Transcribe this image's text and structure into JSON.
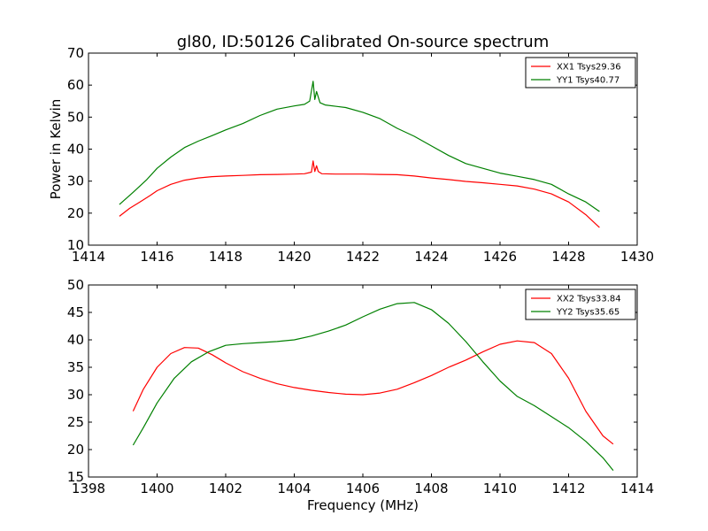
{
  "figure": {
    "title": "gl80, ID:50126 Calibrated On-source spectrum",
    "background": "#ffffff"
  },
  "chart_data": [
    {
      "type": "line",
      "title": "gl80, ID:50126 Calibrated On-source spectrum",
      "xlabel": "",
      "ylabel": "Power in Kelvin",
      "xlim": [
        1414,
        1430
      ],
      "ylim": [
        10,
        70
      ],
      "xticks": [
        1414,
        1416,
        1418,
        1420,
        1422,
        1424,
        1426,
        1428,
        1430
      ],
      "yticks": [
        10,
        20,
        30,
        40,
        50,
        60,
        70
      ],
      "grid": false,
      "legend_position": "top-right",
      "series": [
        {
          "name": "XX1 Tsys29.36",
          "color": "#ff0000",
          "points": [
            [
              1414.9,
              19.0
            ],
            [
              1415.2,
              21.5
            ],
            [
              1415.5,
              23.5
            ],
            [
              1415.8,
              25.5
            ],
            [
              1416.0,
              27.0
            ],
            [
              1416.4,
              29.0
            ],
            [
              1416.8,
              30.3
            ],
            [
              1417.2,
              31.0
            ],
            [
              1417.6,
              31.4
            ],
            [
              1418.0,
              31.6
            ],
            [
              1418.5,
              31.8
            ],
            [
              1419.0,
              32.0
            ],
            [
              1419.5,
              32.1
            ],
            [
              1420.0,
              32.2
            ],
            [
              1420.3,
              32.3
            ],
            [
              1420.5,
              32.8
            ],
            [
              1420.55,
              36.3
            ],
            [
              1420.6,
              33.0
            ],
            [
              1420.65,
              34.8
            ],
            [
              1420.7,
              33.0
            ],
            [
              1420.8,
              32.3
            ],
            [
              1421.2,
              32.2
            ],
            [
              1421.6,
              32.2
            ],
            [
              1422.0,
              32.2
            ],
            [
              1422.5,
              32.1
            ],
            [
              1423.0,
              32.0
            ],
            [
              1423.5,
              31.6
            ],
            [
              1424.0,
              31.0
            ],
            [
              1424.5,
              30.5
            ],
            [
              1425.0,
              29.9
            ],
            [
              1425.5,
              29.5
            ],
            [
              1426.0,
              29.0
            ],
            [
              1426.5,
              28.5
            ],
            [
              1427.0,
              27.5
            ],
            [
              1427.5,
              26.0
            ],
            [
              1428.0,
              23.5
            ],
            [
              1428.5,
              19.5
            ],
            [
              1428.9,
              15.5
            ]
          ]
        },
        {
          "name": "YY1 Tsys40.77",
          "color": "#008000",
          "points": [
            [
              1414.9,
              22.7
            ],
            [
              1415.3,
              26.5
            ],
            [
              1415.7,
              30.5
            ],
            [
              1416.0,
              34.0
            ],
            [
              1416.4,
              37.5
            ],
            [
              1416.8,
              40.5
            ],
            [
              1417.2,
              42.5
            ],
            [
              1417.6,
              44.2
            ],
            [
              1418.0,
              46.0
            ],
            [
              1418.5,
              48.0
            ],
            [
              1419.0,
              50.5
            ],
            [
              1419.5,
              52.5
            ],
            [
              1420.0,
              53.5
            ],
            [
              1420.3,
              54.0
            ],
            [
              1420.45,
              55.0
            ],
            [
              1420.55,
              61.2
            ],
            [
              1420.6,
              55.5
            ],
            [
              1420.65,
              58.0
            ],
            [
              1420.75,
              54.5
            ],
            [
              1420.9,
              53.8
            ],
            [
              1421.5,
              53.0
            ],
            [
              1422.0,
              51.5
            ],
            [
              1422.5,
              49.5
            ],
            [
              1423.0,
              46.5
            ],
            [
              1423.5,
              44.0
            ],
            [
              1424.0,
              41.0
            ],
            [
              1424.5,
              38.0
            ],
            [
              1425.0,
              35.5
            ],
            [
              1425.5,
              34.0
            ],
            [
              1426.0,
              32.5
            ],
            [
              1426.5,
              31.5
            ],
            [
              1427.0,
              30.5
            ],
            [
              1427.5,
              29.0
            ],
            [
              1428.0,
              26.0
            ],
            [
              1428.5,
              23.5
            ],
            [
              1428.9,
              20.5
            ]
          ]
        }
      ]
    },
    {
      "type": "line",
      "title": "",
      "xlabel": "Frequency (MHz)",
      "ylabel": "",
      "xlim": [
        1398,
        1414
      ],
      "ylim": [
        15,
        50
      ],
      "xticks": [
        1398,
        1400,
        1402,
        1404,
        1406,
        1408,
        1410,
        1412,
        1414
      ],
      "yticks": [
        15,
        20,
        25,
        30,
        35,
        40,
        45,
        50
      ],
      "grid": false,
      "legend_position": "top-right",
      "series": [
        {
          "name": "XX2 Tsys33.84",
          "color": "#ff0000",
          "points": [
            [
              1399.3,
              27.0
            ],
            [
              1399.6,
              31.0
            ],
            [
              1400.0,
              35.0
            ],
            [
              1400.4,
              37.5
            ],
            [
              1400.8,
              38.6
            ],
            [
              1401.2,
              38.5
            ],
            [
              1401.6,
              37.3
            ],
            [
              1402.0,
              35.8
            ],
            [
              1402.5,
              34.2
            ],
            [
              1403.0,
              33.0
            ],
            [
              1403.5,
              32.0
            ],
            [
              1404.0,
              31.3
            ],
            [
              1404.5,
              30.8
            ],
            [
              1405.0,
              30.4
            ],
            [
              1405.5,
              30.1
            ],
            [
              1406.0,
              30.0
            ],
            [
              1406.5,
              30.3
            ],
            [
              1407.0,
              31.0
            ],
            [
              1407.5,
              32.2
            ],
            [
              1408.0,
              33.5
            ],
            [
              1408.5,
              35.0
            ],
            [
              1409.0,
              36.3
            ],
            [
              1409.5,
              37.8
            ],
            [
              1410.0,
              39.2
            ],
            [
              1410.5,
              39.8
            ],
            [
              1411.0,
              39.5
            ],
            [
              1411.5,
              37.5
            ],
            [
              1412.0,
              33.0
            ],
            [
              1412.5,
              27.0
            ],
            [
              1413.0,
              22.5
            ],
            [
              1413.3,
              21.0
            ]
          ]
        },
        {
          "name": "YY2 Tsys35.65",
          "color": "#008000",
          "points": [
            [
              1399.3,
              20.8
            ],
            [
              1399.6,
              24.0
            ],
            [
              1400.0,
              28.5
            ],
            [
              1400.5,
              33.0
            ],
            [
              1401.0,
              36.0
            ],
            [
              1401.5,
              37.8
            ],
            [
              1402.0,
              39.0
            ],
            [
              1402.5,
              39.3
            ],
            [
              1403.0,
              39.5
            ],
            [
              1403.5,
              39.7
            ],
            [
              1404.0,
              40.0
            ],
            [
              1404.5,
              40.7
            ],
            [
              1405.0,
              41.6
            ],
            [
              1405.5,
              42.7
            ],
            [
              1406.0,
              44.2
            ],
            [
              1406.5,
              45.6
            ],
            [
              1407.0,
              46.6
            ],
            [
              1407.5,
              46.8
            ],
            [
              1408.0,
              45.5
            ],
            [
              1408.5,
              43.0
            ],
            [
              1409.0,
              39.7
            ],
            [
              1409.5,
              36.0
            ],
            [
              1410.0,
              32.5
            ],
            [
              1410.5,
              29.7
            ],
            [
              1411.0,
              28.0
            ],
            [
              1411.5,
              26.0
            ],
            [
              1412.0,
              24.0
            ],
            [
              1412.5,
              21.5
            ],
            [
              1413.0,
              18.5
            ],
            [
              1413.3,
              16.2
            ]
          ]
        }
      ]
    }
  ]
}
